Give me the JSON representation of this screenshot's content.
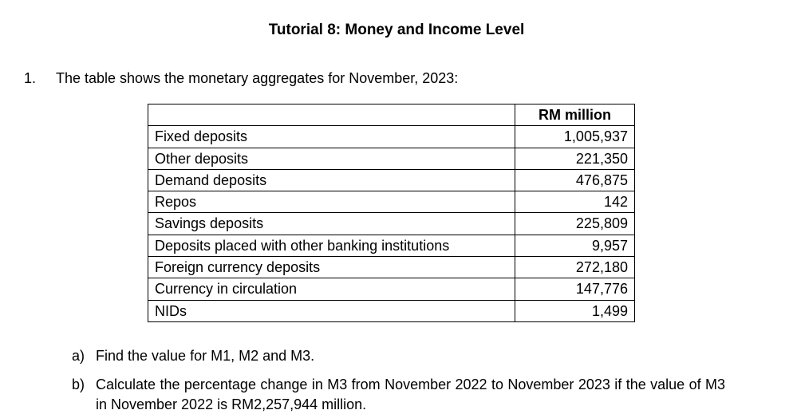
{
  "title": "Tutorial 8: Money and Income Level",
  "question": {
    "number": "1.",
    "text": "The table shows the monetary aggregates for November, 2023:"
  },
  "table": {
    "header": {
      "label": "",
      "value": "RM million"
    },
    "rows": [
      {
        "label": "Fixed deposits",
        "value": "1,005,937"
      },
      {
        "label": "Other deposits",
        "value": "221,350"
      },
      {
        "label": "Demand deposits",
        "value": "476,875"
      },
      {
        "label": "Repos",
        "value": "142"
      },
      {
        "label": "Savings deposits",
        "value": "225,809"
      },
      {
        "label": "Deposits placed with other banking institutions",
        "value": "9,957"
      },
      {
        "label": "Foreign currency deposits",
        "value": "272,180"
      },
      {
        "label": "Currency in circulation",
        "value": "147,776"
      },
      {
        "label": "NIDs",
        "value": "1,499"
      }
    ]
  },
  "subquestions": {
    "a": {
      "letter": "a)",
      "text": "Find the value for M1, M2 and M3."
    },
    "b": {
      "letter": "b)",
      "text": "Calculate the percentage change in M3 from November 2022 to November 2023 if the value of M3 in November 2022 is RM2,257,944 million."
    }
  },
  "styling": {
    "font_family": "Arial",
    "base_font_size": 18,
    "title_font_size": 19,
    "background_color": "#ffffff",
    "text_color": "#000000",
    "border_color": "#000000",
    "col_label_width": 460,
    "col_value_width": 150
  }
}
